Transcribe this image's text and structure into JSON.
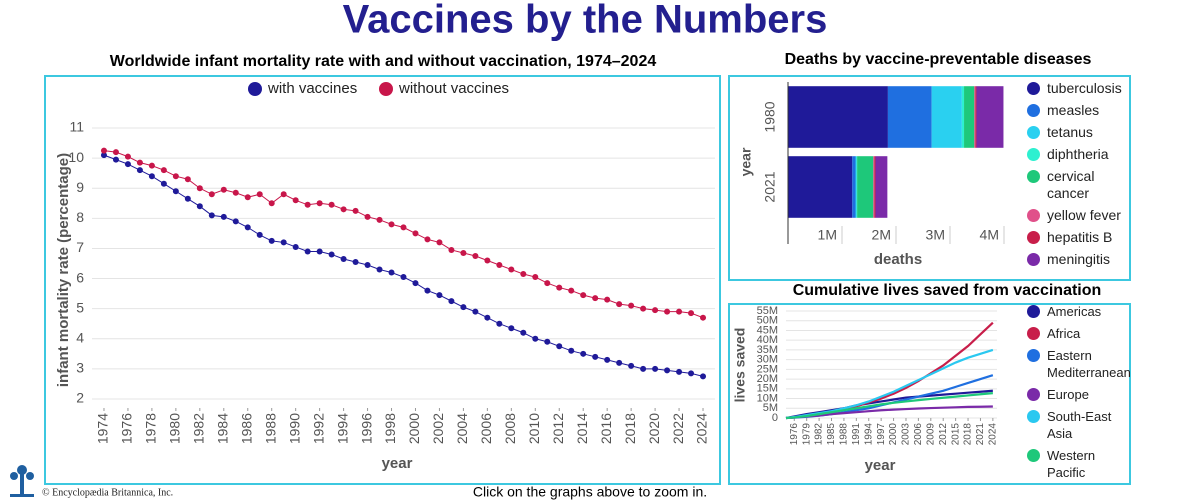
{
  "title": "Vaccines by the Numbers",
  "chart_data": [
    {
      "type": "line",
      "title": "Worldwide infant mortality rate with and without vaccination, 1974–2024",
      "x_label": "year",
      "y_label": "infant mortality rate (percentage)",
      "x": [
        1974,
        1975,
        1976,
        1977,
        1978,
        1979,
        1980,
        1981,
        1982,
        1983,
        1984,
        1985,
        1986,
        1987,
        1988,
        1989,
        1990,
        1991,
        1992,
        1993,
        1994,
        1995,
        1996,
        1997,
        1998,
        1999,
        2000,
        2001,
        2002,
        2003,
        2004,
        2005,
        2006,
        2007,
        2008,
        2009,
        2010,
        2011,
        2012,
        2013,
        2014,
        2015,
        2016,
        2017,
        2018,
        2019,
        2020,
        2021,
        2022,
        2023,
        2024
      ],
      "series": [
        {
          "name": "with vaccines",
          "color": "#1f1a99",
          "values": [
            10.1,
            9.95,
            9.8,
            9.6,
            9.4,
            9.15,
            8.9,
            8.65,
            8.4,
            8.1,
            8.05,
            7.9,
            7.7,
            7.45,
            7.25,
            7.2,
            7.05,
            6.9,
            6.9,
            6.8,
            6.65,
            6.55,
            6.45,
            6.3,
            6.2,
            6.05,
            5.85,
            5.6,
            5.45,
            5.25,
            5.05,
            4.9,
            4.7,
            4.5,
            4.35,
            4.2,
            4.0,
            3.9,
            3.75,
            3.6,
            3.5,
            3.4,
            3.3,
            3.2,
            3.1,
            3.0,
            3.0,
            2.95,
            2.9,
            2.85,
            2.75
          ]
        },
        {
          "name": "without vaccines",
          "color": "#c8164a",
          "values": [
            10.25,
            10.2,
            10.05,
            9.85,
            9.75,
            9.6,
            9.4,
            9.3,
            9.0,
            8.8,
            8.95,
            8.85,
            8.7,
            8.8,
            8.5,
            8.8,
            8.6,
            8.45,
            8.5,
            8.45,
            8.3,
            8.25,
            8.05,
            7.95,
            7.8,
            7.7,
            7.5,
            7.3,
            7.2,
            6.95,
            6.85,
            6.75,
            6.6,
            6.45,
            6.3,
            6.15,
            6.05,
            5.85,
            5.7,
            5.6,
            5.45,
            5.35,
            5.3,
            5.15,
            5.1,
            5.0,
            4.95,
            4.9,
            4.9,
            4.85,
            4.7
          ]
        }
      ],
      "xlim": [
        1973,
        2025
      ],
      "xticks": [
        1974,
        1976,
        1978,
        1980,
        1982,
        1984,
        1986,
        1988,
        1990,
        1992,
        1994,
        1996,
        1998,
        2000,
        2002,
        2004,
        2006,
        2008,
        2010,
        2012,
        2014,
        2016,
        2018,
        2020,
        2022,
        2024
      ],
      "ylim": [
        1.7,
        11.3
      ],
      "yticks": [
        2,
        3,
        4,
        5,
        6,
        7,
        8,
        9,
        10,
        11
      ],
      "grid": true,
      "markers": true,
      "legend": "top"
    },
    {
      "type": "bar",
      "title": "Deaths by vaccine-preventable diseases",
      "orientation": "horizontal",
      "stacked": true,
      "x_label": "deaths",
      "y_label": "year",
      "categories": [
        "1980",
        "2021"
      ],
      "series": [
        {
          "name": "tuberculosis",
          "color": "#1f1a99",
          "values": [
            1850000,
            1190000
          ]
        },
        {
          "name": "measles",
          "color": "#1f6fe0",
          "values": [
            810000,
            60000
          ]
        },
        {
          "name": "tetanus",
          "color": "#2ad0f0",
          "values": [
            560000,
            20000
          ]
        },
        {
          "name": "diphtheria",
          "color": "#2ef0d0",
          "values": [
            40000,
            10000
          ]
        },
        {
          "name": "cervical cancer",
          "color": "#1ec87a",
          "values": [
            190000,
            300000
          ]
        },
        {
          "name": "yellow fever",
          "color": "#e0508a",
          "values": [
            20000,
            20000
          ]
        },
        {
          "name": "hepatitis B",
          "color": "#c81e4a",
          "values": [
            20000,
            20000
          ]
        },
        {
          "name": "meningitis",
          "color": "#7a2aa8",
          "values": [
            500000,
            220000
          ]
        }
      ],
      "xlim": [
        0,
        4300000
      ],
      "xticks": [
        {
          "value": 1000000,
          "label": "1M"
        },
        {
          "value": 2000000,
          "label": "2M"
        },
        {
          "value": 3000000,
          "label": "3M"
        },
        {
          "value": 4000000,
          "label": "4M"
        }
      ],
      "legend": "right"
    },
    {
      "type": "line",
      "title": "Cumulative lives saved from vaccination",
      "x_label": "year",
      "y_label": "lives saved",
      "x": [
        1974,
        1976,
        1979,
        1982,
        1985,
        1988,
        1991,
        1994,
        1997,
        2000,
        2003,
        2006,
        2009,
        2012,
        2015,
        2018,
        2021,
        2024
      ],
      "series": [
        {
          "name": "Americas",
          "color": "#1f1a99",
          "values": [
            0,
            800000,
            2000000,
            3000000,
            4000000,
            5000000,
            6500000,
            7500000,
            8500000,
            9500000,
            10500000,
            11000000,
            11500000,
            12000000,
            12500000,
            13000000,
            13500000,
            14000000
          ]
        },
        {
          "name": "Africa",
          "color": "#c81e4a",
          "values": [
            0,
            300000,
            1000000,
            2000000,
            3000000,
            4500000,
            6000000,
            8000000,
            10000000,
            12500000,
            15500000,
            19000000,
            23000000,
            27000000,
            32000000,
            37000000,
            43000000,
            49000000
          ]
        },
        {
          "name": "Eastern Mediterranean",
          "color": "#1f6fe0",
          "values": [
            0,
            200000,
            600000,
            1200000,
            2000000,
            3000000,
            4000000,
            5000000,
            6500000,
            8000000,
            9500000,
            11000000,
            12500000,
            14000000,
            16000000,
            18000000,
            20000000,
            22000000
          ]
        },
        {
          "name": "Europe",
          "color": "#7a2aa8",
          "values": [
            0,
            300000,
            800000,
            1300000,
            2000000,
            2500000,
            3000000,
            3500000,
            4000000,
            4300000,
            4600000,
            4900000,
            5100000,
            5300000,
            5500000,
            5700000,
            5800000,
            5900000
          ]
        },
        {
          "name": "South-East Asia",
          "color": "#2ac8f0",
          "values": [
            0,
            500000,
            1500000,
            2500000,
            3500000,
            5000000,
            6500000,
            8500000,
            11000000,
            13500000,
            16500000,
            19500000,
            22500000,
            25500000,
            28500000,
            31000000,
            33000000,
            35000000
          ]
        },
        {
          "name": "Western Pacific",
          "color": "#1ec87a",
          "values": [
            0,
            300000,
            1000000,
            2000000,
            3000000,
            4000000,
            5000000,
            6000000,
            7000000,
            7800000,
            8500000,
            9200000,
            9800000,
            10400000,
            11000000,
            11600000,
            12200000,
            12800000
          ]
        }
      ],
      "xlim": [
        1974,
        2025
      ],
      "xticks": [
        1976,
        1979,
        1982,
        1985,
        1988,
        1991,
        1994,
        1997,
        2000,
        2003,
        2006,
        2009,
        2012,
        2015,
        2018,
        2021,
        2024
      ],
      "ylim": [
        0,
        55000000
      ],
      "yticks": [
        0,
        {
          "value": 5000000,
          "label": "5M"
        },
        {
          "value": 10000000,
          "label": "10M"
        },
        {
          "value": 15000000,
          "label": "15M"
        },
        {
          "value": 20000000,
          "label": "20M"
        },
        {
          "value": 25000000,
          "label": "25M"
        },
        {
          "value": 30000000,
          "label": "30M"
        },
        {
          "value": 35000000,
          "label": "35M"
        },
        {
          "value": 40000000,
          "label": "40M"
        },
        {
          "value": 45000000,
          "label": "45M"
        },
        {
          "value": 50000000,
          "label": "50M"
        },
        {
          "value": 55000000,
          "label": "55M"
        }
      ],
      "grid": true,
      "markers": false,
      "legend": "right"
    }
  ],
  "footer": {
    "copyright": "© Encyclopædia Britannica, Inc.",
    "note": "Click on the graphs above to zoom in."
  }
}
